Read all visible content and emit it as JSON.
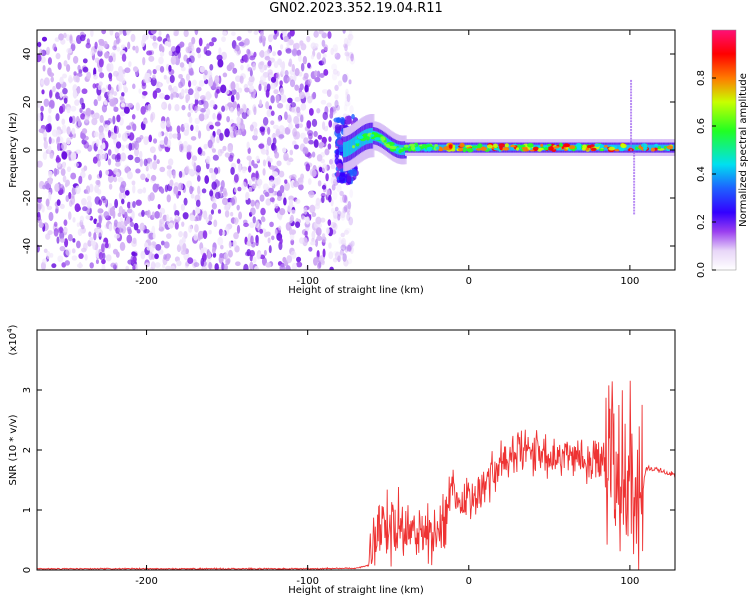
{
  "title": "GN02.2023.352.19.04.R11",
  "colors": {
    "snr_line": "#ee3333",
    "frame": "#000000"
  },
  "chart_data": [
    {
      "type": "heatmap",
      "xlabel": "Height of straight line (km)",
      "ylabel": "Frequency (Hz)",
      "xlim": [
        -268,
        128
      ],
      "ylim": [
        -50,
        50
      ],
      "x_ticks": [
        -200,
        -100,
        0,
        100
      ],
      "x_tick_labels": [
        "-200",
        "-100",
        "0",
        "100"
      ],
      "y_ticks": [
        -40,
        -20,
        0,
        20,
        40
      ],
      "y_tick_labels": [
        "-40",
        "-20",
        "0",
        "20",
        "40"
      ],
      "colorbar": {
        "label": "Normalized spectral amplitude",
        "range": [
          0,
          1
        ],
        "ticks": [
          "0.0",
          "0.2",
          "0.4",
          "0.6",
          "0.8"
        ],
        "colormap": "white-violet-blue-cyan-green-yellow-red-magenta"
      },
      "features": {
        "noise_region_x": [
          -268,
          -78
        ],
        "signal_band_center_hz": 1,
        "signal_band_x": [
          -78,
          128
        ]
      }
    },
    {
      "type": "line",
      "xlabel": "Height of straight line (km)",
      "ylabel": "SNR (10 * v/v)",
      "y_scale_note": "(x10",
      "y_scale_exponent": "4",
      "y_scale_suffix": ")",
      "xlim": [
        -268,
        128
      ],
      "ylim": [
        0,
        4
      ],
      "x_ticks": [
        -200,
        -100,
        0,
        100
      ],
      "x_tick_labels": [
        "-200",
        "-100",
        "0",
        "100"
      ],
      "y_ticks": [
        0,
        1,
        2,
        3
      ],
      "y_tick_labels": [
        "0",
        "1",
        "2",
        "3"
      ],
      "series": [
        {
          "x": [
            -268,
            -100,
            -70,
            -62,
            -58,
            -55,
            -50,
            -45,
            -40,
            -35,
            -30,
            -25,
            -20,
            -15,
            -10,
            -5,
            0,
            5,
            10,
            15,
            20,
            25,
            30,
            35,
            40,
            45,
            50,
            55,
            60,
            65,
            70,
            75,
            80,
            85,
            88,
            92,
            95,
            98,
            100,
            103,
            106,
            110,
            115,
            120,
            128
          ],
          "y": [
            0.02,
            0.02,
            0.03,
            0.08,
            0.6,
            0.9,
            0.7,
            0.8,
            0.55,
            0.75,
            0.6,
            0.7,
            0.5,
            0.9,
            1.5,
            1.0,
            1.3,
            1.2,
            1.5,
            1.6,
            1.75,
            1.85,
            1.9,
            2.0,
            1.95,
            2.0,
            1.9,
            2.0,
            1.95,
            1.9,
            1.9,
            1.85,
            1.85,
            1.8,
            1.8,
            1.5,
            1.3,
            1.7,
            2.2,
            1.4,
            1.0,
            1.7,
            1.68,
            1.65,
            1.58
          ]
        }
      ]
    }
  ]
}
